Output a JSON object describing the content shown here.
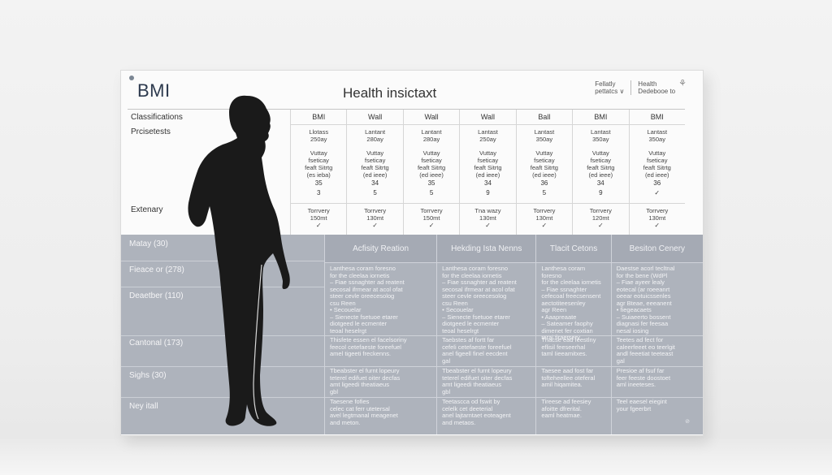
{
  "brand": "BMI",
  "doc_title": "Health insictaxt",
  "top_right": {
    "line1a": "Fellatly",
    "line1b": "pettatcs ∨",
    "line2a": "Health",
    "line2b": "Dedebooe to"
  },
  "header_table": {
    "row_labels": {
      "classifications": "Classifications",
      "prcisetests": "Prcisetests",
      "extenary": "Extenary"
    },
    "columns": [
      {
        "head": "BMI",
        "l2a": "Llotass",
        "l2b": "250ay",
        "l3": [
          "Vuttay",
          "fseticay",
          "feaft Sitrtg",
          "(es ieba)"
        ],
        "n1": "35",
        "n2": "3",
        "ext1": "Torrvery",
        "ext2": "150mt",
        "chk": "✓"
      },
      {
        "head": "Wall",
        "l2a": "Lantant",
        "l2b": "280ay",
        "l3": [
          "Vuttay",
          "fseticay",
          "feaft Sitrtg",
          "(ed ieee)"
        ],
        "n1": "34",
        "n2": "5",
        "ext1": "Torrvery",
        "ext2": "130mt",
        "chk": "✓"
      },
      {
        "head": "Wall",
        "l2a": "Lantant",
        "l2b": "280ay",
        "l3": [
          "Vuttay",
          "fseticay",
          "feaft Sitrtg",
          "(ed ieee)"
        ],
        "n1": "35",
        "n2": "5",
        "ext1": "Torrvery",
        "ext2": "150mt",
        "chk": "✓"
      },
      {
        "head": "Wall",
        "l2a": "Lantast",
        "l2b": "250ay",
        "l3": [
          "Vuttay",
          "fseticay",
          "feaft Sitrtg",
          "(ed ieee)"
        ],
        "n1": "34",
        "n2": "9",
        "ext1": "Tna wazy",
        "ext2": "130mt",
        "chk": "✓"
      },
      {
        "head": "Ball",
        "l2a": "Lantast",
        "l2b": "350ay",
        "l3": [
          "Vuttay",
          "fseticay",
          "feaft Sitrtg",
          "(ed ieee)"
        ],
        "n1": "36",
        "n2": "5",
        "ext1": "Torrvery",
        "ext2": "130mt",
        "chk": "✓"
      },
      {
        "head": "BMI",
        "l2a": "Lantast",
        "l2b": "350ay",
        "l3": [
          "Vuttay",
          "fseticay",
          "feaft Sitrtg",
          "(ed ieee)"
        ],
        "n1": "34",
        "n2": "9",
        "ext1": "Torrvery",
        "ext2": "120mt",
        "chk": "✓"
      },
      {
        "head": "BMI",
        "l2a": "Lantast",
        "l2b": "350ay",
        "l3": [
          "Vuttay",
          "fseticay",
          "feaft Sitrtg",
          "(ed ieee)"
        ],
        "n1": "36",
        "n2": "✓",
        "ext1": "Torrvery",
        "ext2": "130mt",
        "chk": "✓"
      }
    ]
  },
  "lower_table": {
    "row_labels": [
      "Matay (30)",
      "Fieace or (278)",
      "Deaetber (110)",
      "Cantonal (173)",
      "Sighs (30)",
      "Ney itall"
    ],
    "columns": [
      {
        "title": "Acfisity Reation",
        "cells": [
          "Lanthesa coram foresno\nfor the cleelaa iornetis\n– Fiae ssnaghter ad reatent\nsecosal ifrmear at acol ofat\nsteer cevle oreecesolog\ncsu Reen\n• Secouelar\n– Sienecte fsetuoe etarer\ndiotgeed le ecmenter\nteoal heselrgt",
          "Thisfete essen el facelsoriny\nfeecol cetefaeste foreefuel\namel tigeeti freckenns.",
          "Tbeabster el furnt lopeury\nteterel edifuet oiter decfas\namt ligeedi theatiaeus\ngbl",
          "Taesene fofies\ncelec cat ferr utetersal\navel legtmanal meagenet\nand meton."
        ]
      },
      {
        "title": "Hekding Ista Nenns",
        "cells": [
          "Lanthesa coram foresno\nfor the cleelaa iornetis\n– Fiae ssnaghter ad reatent\nsecosal ifrmear at acol ofat\nsteer cevle oreecesolog\ncsu Reen\n• Secouelar\n– Sienecte fsetuoe etarer\ndiotgeed le ecmenter\nteoal heselrgt",
          "Taebstes af fortt far\ncefeli cetefaeste foreefuel\nanel figeell finel eecdent\ngal",
          "Tbeabster el furnt lopeury\nteterel edifuet oiter decfas\namt ligeedi theatiaeus\ngbl",
          "Teetascca od fswit by\ncelelk cet deeterial\nanel lajtarntaet eoteagent\nand metaos."
        ]
      },
      {
        "title": "Tlacit Cetons",
        "cells": [
          "Lanthesa coram foresno\nfor the cleelaa iornetis\n– Fiae ssnaghter\ncefecoal freecsensent\naectotiteesenley\nagr Reen\n• Aaapreaate\n– Sateamer faophy\ndimenet fer coxtian\nteral firaetsery",
          "Thacse ead feestlny\neflisil feeseerhal\ntaml Iieeamitxes.",
          "Taesee aad fost far\ntofteheellee oteferal\namil hiqamitea.",
          "Tireese ad feesiey\nafoitte dfrerital.\neaml heatmae."
        ]
      },
      {
        "title": "Besiton Cenery",
        "cells": [
          "Daestse acorl tecltnal\nfor the bene (WdPl\n– Fiae ayeer lealy\neotecal (ar roeeanrt\noeear eotuicssenles\nagr Bteae, eeeanent\n• fiegeacaets\n– Suiaeerto bossent\ndiagnasi fer feesaa\nnesal iosing",
          "Teetes ad fect for\ncaleerfeeet eo teerlgit\nandl feeetiat teeteast\ngal",
          "Presioe af fsuf far\nfeer feeste doostoet\naml ineeteses.",
          "Teel eaesel eiegint\nyour fgeerbrt"
        ]
      }
    ],
    "corner_mark": "⊘"
  },
  "colors": {
    "board": "#fbfbfb",
    "lower_table": "#aeb3bc",
    "header_row": "#a5aab4",
    "brand_text": "#2d3a4e",
    "silhouette": "#1a1a1a"
  },
  "icons": {
    "silhouette": "human-figure-silhouette",
    "leaf": "leaf-icon",
    "check": "check-icon"
  }
}
